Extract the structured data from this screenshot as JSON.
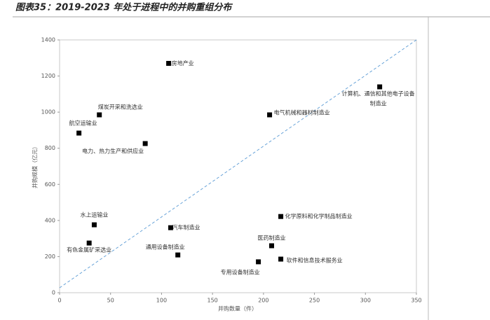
{
  "chart_data": {
    "type": "scatter",
    "title": "图表35：2019-2023 年处于进程中的并购重组分布",
    "x_label": "并购数量（件）",
    "y_label": "并购规模（亿元）",
    "xlim": [
      0,
      350
    ],
    "xticks": [
      0,
      50,
      100,
      150,
      200,
      250,
      300,
      350
    ],
    "ylim": [
      0,
      1400
    ],
    "yticks": [
      0,
      200,
      400,
      600,
      800,
      1000,
      1200,
      1400
    ],
    "color": "#000000",
    "labels": [
      "房地产业",
      "煤炭开采和洗选业",
      "航空运输业",
      "电力、热力生产和供应业",
      "电气机械和器材制造业",
      [
        "计算机、通信和其他电子设备",
        "制造业"
      ],
      "水上运输业",
      "有色金属矿采选业",
      "汽车制造业",
      "通用设备制造业",
      "化学原料和化学制品制造业",
      "医药制造业",
      "专用设备制造业",
      "软件和信息技术服务业"
    ],
    "x": [
      107,
      39,
      19,
      84,
      206,
      314,
      34,
      29,
      109,
      116,
      217,
      208,
      195,
      217
    ],
    "y": [
      1270,
      985,
      884,
      826,
      985,
      1140,
      376,
      275,
      360,
      209,
      422,
      260,
      171,
      186
    ]
  }
}
